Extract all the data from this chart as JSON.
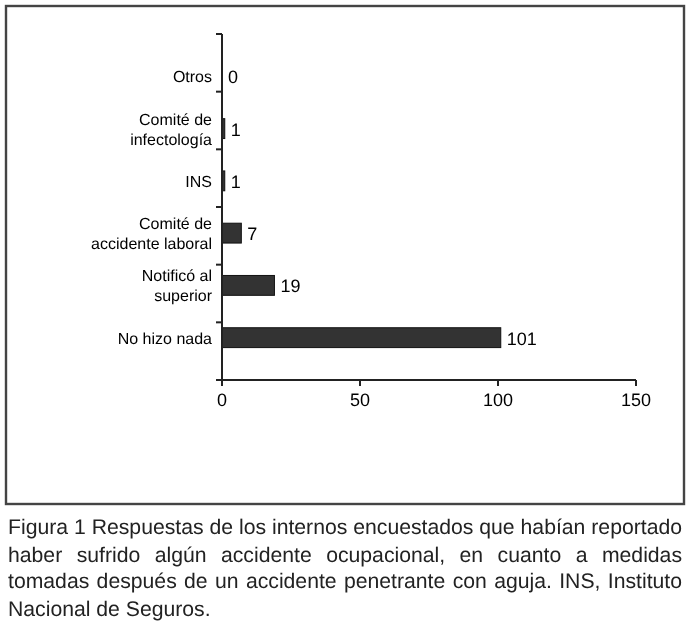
{
  "chart_data": {
    "type": "bar",
    "orientation": "horizontal",
    "categories": [
      "Otros",
      "Comité de infectología",
      "INS",
      "Comité de accidente laboral",
      "Notificó al superior",
      "No hizo nada"
    ],
    "values": [
      0,
      1,
      1,
      7,
      19,
      101
    ],
    "color": "#333333",
    "data_labels": true,
    "xlim": [
      0,
      150
    ],
    "xticks": [
      0,
      50,
      100,
      150
    ],
    "grid": false,
    "annotations": [
      "Figura 1 Respuestas de los internos encuestados que habían reportado haber sufrido algún accidente ocupacional, en cuanto a medidas tomadas después de un accidente penetrante con aguja. INS, Instituto Nacional de Seguros."
    ]
  }
}
